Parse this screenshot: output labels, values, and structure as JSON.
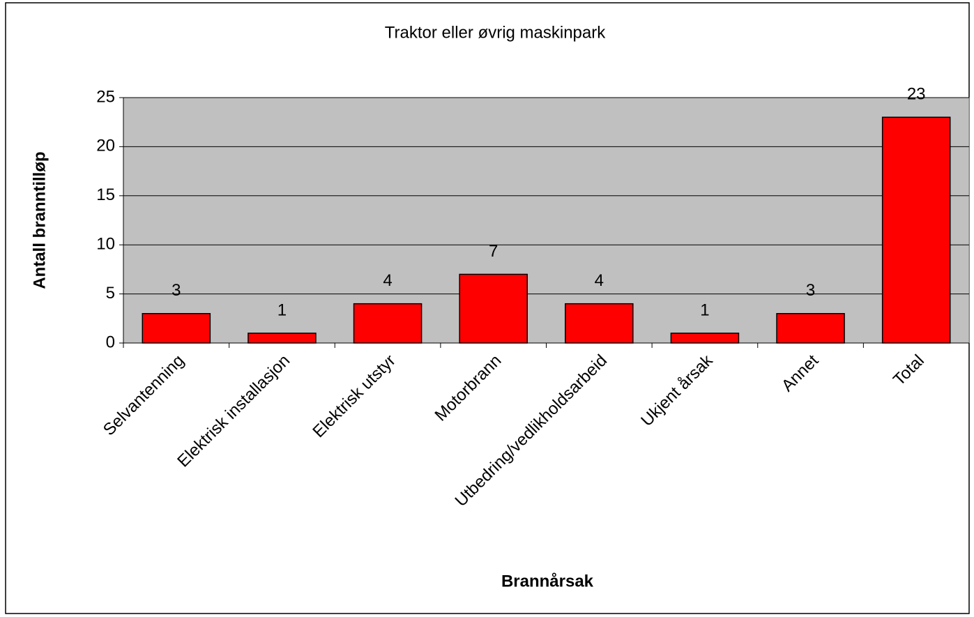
{
  "chart_data": {
    "type": "bar",
    "title": "Traktor eller øvrig maskinpark",
    "xlabel": "Brannårsak",
    "ylabel": "Antall branntilløp",
    "categories": [
      "Selvantenning",
      "Elektrisk installasjon",
      "Elektrisk utstyr",
      "Motorbrann",
      "Utbedring/vedlikholdsarbeid",
      "Ukjent årsak",
      "Annet",
      "Total"
    ],
    "values": [
      3,
      1,
      4,
      7,
      4,
      1,
      3,
      23
    ],
    "color": "#ff0000",
    "ylim": [
      0,
      25
    ],
    "yticks": [
      0,
      5,
      10,
      15,
      20,
      25
    ],
    "grid": true
  }
}
